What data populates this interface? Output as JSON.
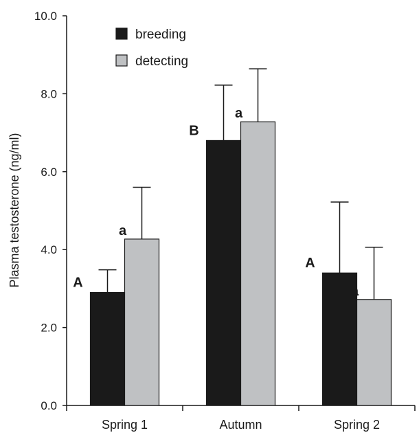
{
  "chart_data": {
    "type": "bar",
    "title": "",
    "xlabel": "",
    "ylabel": "Plasma testosterone  (ng/ml)",
    "ylim": [
      0,
      10
    ],
    "yticks": [
      "0.0",
      "2.0",
      "4.0",
      "6.0",
      "8.0",
      "10.0"
    ],
    "ytick_values": [
      0,
      2,
      4,
      6,
      8,
      10
    ],
    "categories": [
      "Spring 1",
      "Autumn",
      "Spring 2"
    ],
    "series": [
      {
        "name": "breeding",
        "color": "#1a1a1a",
        "values": [
          2.9,
          6.8,
          3.4
        ],
        "error_upper": [
          3.48,
          8.22,
          5.22
        ],
        "labels": [
          "A",
          "B",
          "A"
        ]
      },
      {
        "name": "detecting",
        "color": "#bfc1c3",
        "values": [
          4.27,
          7.28,
          2.72
        ],
        "error_upper": [
          5.6,
          8.64,
          4.06
        ],
        "labels": [
          "a",
          "a",
          "a"
        ]
      }
    ],
    "legend_position": "top-left",
    "grid": false
  }
}
